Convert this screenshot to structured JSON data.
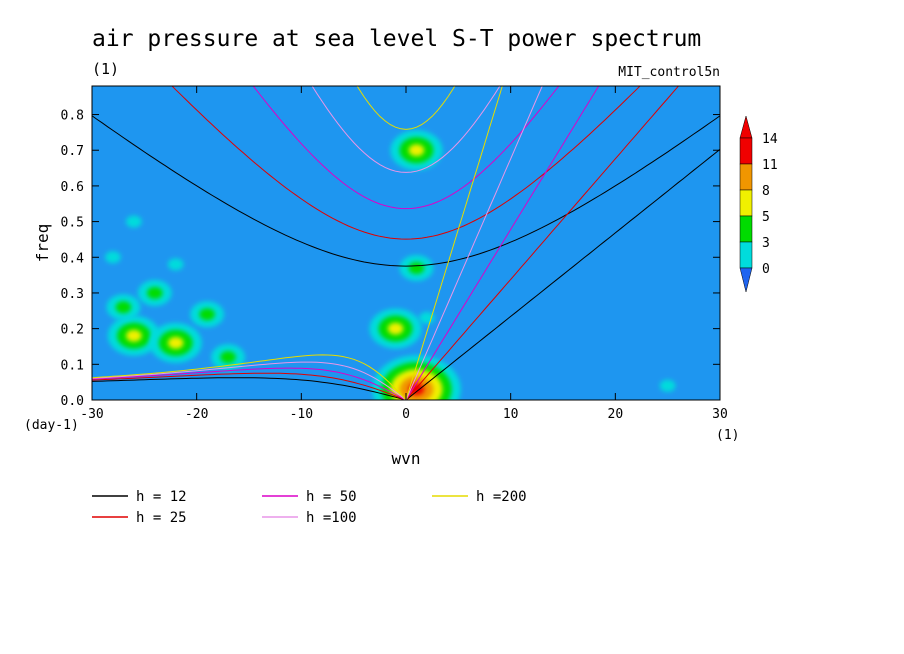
{
  "chart_data": {
    "type": "heatmap",
    "title": "air pressure at sea level S-T power spectrum",
    "subtitle_left": "(1)",
    "subtitle_right": "MIT_control5n",
    "xlabel": "wvn",
    "ylabel": "freq",
    "x_units": "(1)",
    "y_units": "(day-1)",
    "xlim": [
      -30,
      30
    ],
    "ylim": [
      0,
      0.88
    ],
    "x_ticks": [
      -30,
      -20,
      -10,
      0,
      10,
      20,
      30
    ],
    "x_tick_labels": [
      "-30",
      "-20",
      "-10",
      "0",
      "10",
      "20",
      "30"
    ],
    "y_ticks": [
      0.0,
      0.1,
      0.2,
      0.3,
      0.4,
      0.5,
      0.6,
      0.7,
      0.8
    ],
    "y_tick_labels": [
      "0.0",
      "0.1",
      "0.2",
      "0.3",
      "0.4",
      "0.5",
      "0.6",
      "0.7",
      "0.8"
    ],
    "colorbar": {
      "levels": [
        0,
        3,
        5,
        8,
        11,
        14
      ],
      "labels": [
        "0",
        "3",
        "5",
        "8",
        "11",
        "14"
      ],
      "colors": [
        "#1e64f0",
        "#00dcdc",
        "#00dc00",
        "#f0f000",
        "#f09600",
        "#f00000"
      ],
      "below_color": "#1e64f0",
      "background_color": "#1e96f0"
    },
    "field_blobs": [
      {
        "x": -26,
        "y": 0.18,
        "level": 3
      },
      {
        "x": -22,
        "y": 0.16,
        "level": 3
      },
      {
        "x": -17,
        "y": 0.12,
        "level": 2
      },
      {
        "x": -27,
        "y": 0.26,
        "level": 2
      },
      {
        "x": -24,
        "y": 0.3,
        "level": 2
      },
      {
        "x": -19,
        "y": 0.24,
        "level": 2
      },
      {
        "x": -28,
        "y": 0.4,
        "level": 1
      },
      {
        "x": -22,
        "y": 0.38,
        "level": 1
      },
      {
        "x": -26,
        "y": 0.5,
        "level": 1
      },
      {
        "x": 1,
        "y": 0.7,
        "level": 3
      },
      {
        "x": -1,
        "y": 0.2,
        "level": 3
      },
      {
        "x": 1,
        "y": 0.37,
        "level": 2
      },
      {
        "x": 1,
        "y": 0.03,
        "level": 5
      },
      {
        "x": 2,
        "y": 0.23,
        "level": 1
      },
      {
        "x": 25,
        "y": 0.04,
        "level": 1
      }
    ],
    "dispersion_curves": [
      {
        "name": "h = 12",
        "h": 12,
        "color": "#000000"
      },
      {
        "name": "h = 25",
        "h": 25,
        "color": "#e00000"
      },
      {
        "name": "h = 50",
        "h": 50,
        "color": "#dc00c8"
      },
      {
        "name": "h =100",
        "h": 100,
        "color": "#e896e8"
      },
      {
        "name": "h =200",
        "h": 200,
        "color": "#e6dc00"
      }
    ],
    "legend_position": "bottom",
    "colorbar_position": "right"
  }
}
